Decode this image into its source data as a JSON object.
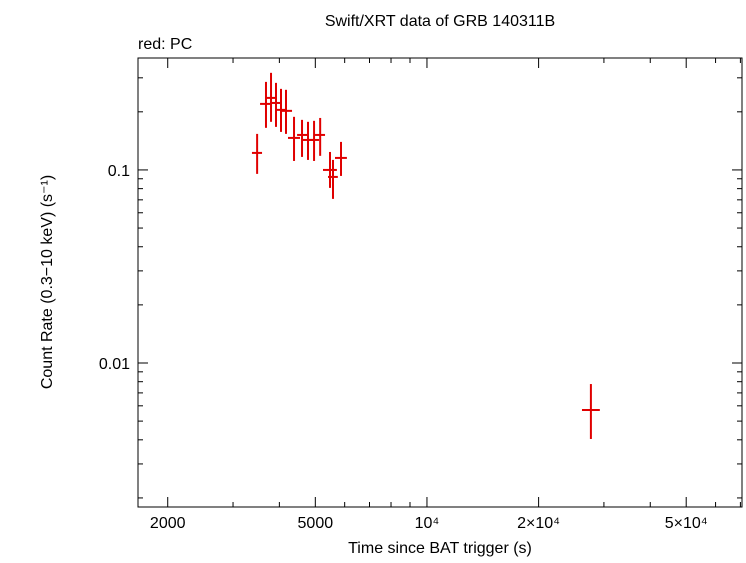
{
  "chart_data": {
    "type": "scatter",
    "title": "Swift/XRT data of GRB 140311B",
    "subtitle": "red: PC",
    "x_label": "Time since BAT trigger (s)",
    "y_label": "Count Rate (0.3−10 keV) (s⁻¹)",
    "log_x": true,
    "log_y": true,
    "xlim": [
      1663,
      70700
    ],
    "ylim": [
      0.001795,
      0.38
    ],
    "xticks": [
      2000,
      5000,
      {
        "value": 10000,
        "label": "10⁴"
      },
      {
        "value": 20000,
        "label": "2×10⁴"
      },
      {
        "value": 50000,
        "label": "5×10⁴"
      }
    ],
    "yticks": [
      0.01,
      0.1
    ],
    "xminorticks": [
      3000,
      4000,
      6000,
      7000,
      8000,
      9000,
      30000,
      40000,
      60000,
      70000
    ],
    "yminorticks": [
      0.002,
      0.003,
      0.004,
      0.005,
      0.006,
      0.007,
      0.008,
      0.009,
      0.02,
      0.03,
      0.04,
      0.05,
      0.06,
      0.07,
      0.08,
      0.09,
      0.2,
      0.3
    ],
    "series": [
      {
        "name": "PC",
        "color": "#e00000",
        "x": [
          3484,
          3681,
          3798,
          3917,
          4041,
          4168,
          4381,
          4604,
          4778,
          4961,
          5153,
          5477,
          5580,
          5865,
          27670
        ],
        "xlow": [
          3374,
          3548,
          3681,
          3776,
          3917,
          4018,
          4220,
          4465,
          4604,
          4809,
          4991,
          5244,
          5410,
          5650,
          26180
        ],
        "xhigh": [
          3592,
          3820,
          3917,
          4064,
          4168,
          4327,
          4547,
          4750,
          4935,
          5118,
          5311,
          5716,
          5750,
          6083,
          29250
        ],
        "y": [
          0.1225,
          0.2198,
          0.2361,
          0.2223,
          0.2047,
          0.2023,
          0.1465,
          0.1518,
          0.143,
          0.143,
          0.1518,
          0.1,
          0.092,
          0.1154,
          0.00571
        ],
        "ylow": [
          0.0954,
          0.1652,
          0.1775,
          0.1671,
          0.1574,
          0.1537,
          0.1113,
          0.1168,
          0.1127,
          0.1113,
          0.1183,
          0.0807,
          0.0708,
          0.0931,
          0.00404
        ],
        "yhigh": [
          0.1537,
          0.2858,
          0.3184,
          0.2825,
          0.263,
          0.26,
          0.1884,
          0.1817,
          0.1775,
          0.1796,
          0.1859,
          0.1239,
          0.1127,
          0.1397,
          0.00778
        ]
      }
    ]
  }
}
